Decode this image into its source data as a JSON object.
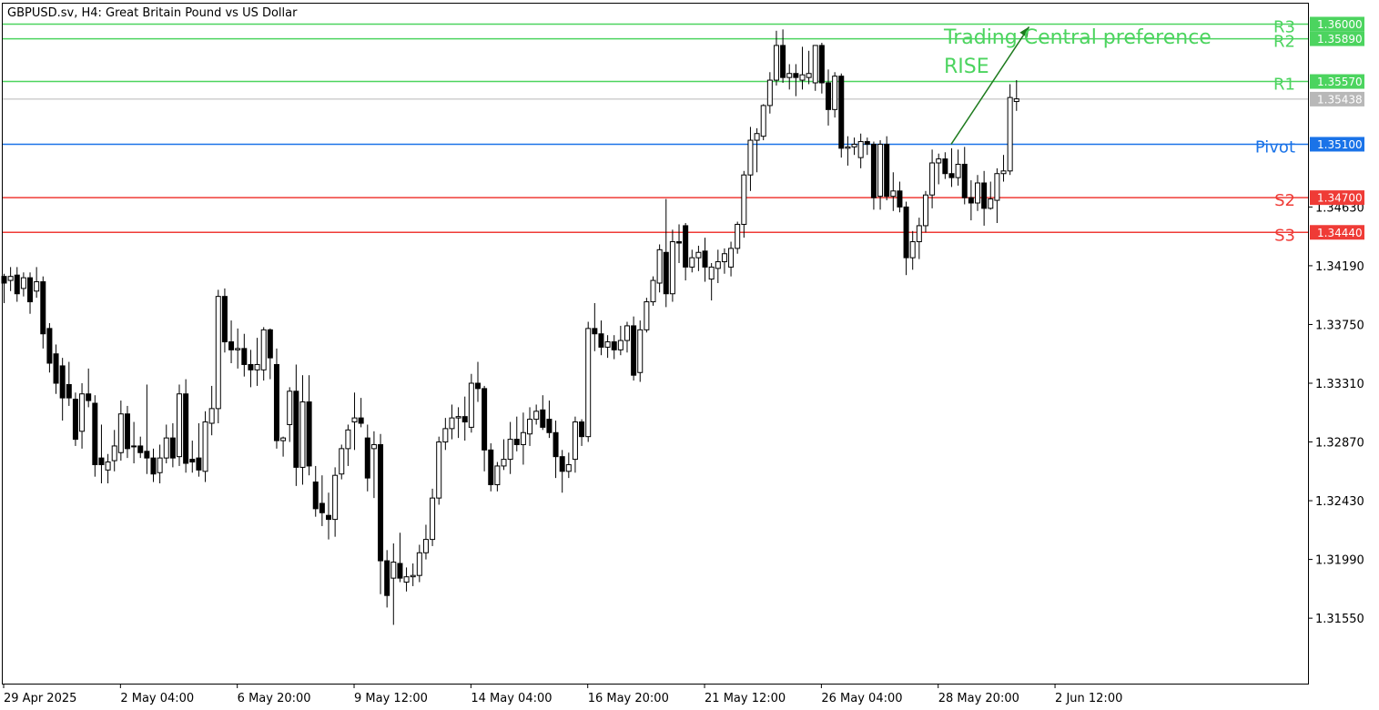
{
  "header": {
    "symbol": "GBPUSD.sv, H4:  Great Britain Pound vs US Dollar"
  },
  "colors": {
    "resistance": "#4cd45f",
    "pivot": "#1a73e8",
    "support": "#ef3b36",
    "current": "#b8b8b8",
    "arrow": "#1d7a1d",
    "candle": "#000000",
    "grid": "#000000"
  },
  "annotation": {
    "line1": "Trading Central preference",
    "line2": "RISE"
  },
  "chart_data": {
    "type": "candlestick",
    "ylim": [
      1.3106,
      1.3616
    ],
    "y_ticks": [
      "1.34630",
      "1.34190",
      "1.33750",
      "1.33310",
      "1.32870",
      "1.32430",
      "1.31990",
      "1.31550"
    ],
    "x_ticks": [
      "29 Apr 2025",
      "2 May 04:00",
      "6 May 20:00",
      "9 May 12:00",
      "14 May 04:00",
      "16 May 20:00",
      "21 May 12:00",
      "26 May 04:00",
      "28 May 20:00",
      "2 Jun 12:00"
    ],
    "levels": [
      {
        "label": "R3",
        "value": 1.36,
        "price": "1.36000",
        "kind": "resistance"
      },
      {
        "label": "R2",
        "value": 1.3589,
        "price": "1.35890",
        "kind": "resistance"
      },
      {
        "label": "R1",
        "value": 1.3557,
        "price": "1.35570",
        "kind": "resistance"
      },
      {
        "label": "",
        "value": 1.35438,
        "price": "1.35438",
        "kind": "current"
      },
      {
        "label": "Pivot",
        "value": 1.351,
        "price": "1.35100",
        "kind": "pivot"
      },
      {
        "label": "S2",
        "value": 1.347,
        "price": "1.34700",
        "kind": "support"
      },
      {
        "label": "S3",
        "value": 1.3444,
        "price": "1.34440",
        "kind": "support"
      }
    ],
    "forecast_arrow": {
      "from_bar": 146,
      "from": 1.351,
      "to_bar": 158,
      "to": 1.3598
    },
    "candles": [
      [
        1.3411,
        1.3413,
        1.3391,
        1.3406
      ],
      [
        1.3408,
        1.3418,
        1.34,
        1.3411
      ],
      [
        1.3412,
        1.3418,
        1.3392,
        1.3398
      ],
      [
        1.3402,
        1.3414,
        1.3396,
        1.341
      ],
      [
        1.341,
        1.3414,
        1.3383,
        1.3392
      ],
      [
        1.34,
        1.3418,
        1.3395,
        1.3407
      ],
      [
        1.3407,
        1.3411,
        1.3357,
        1.3368
      ],
      [
        1.3372,
        1.3376,
        1.3339,
        1.3346
      ],
      [
        1.3353,
        1.336,
        1.3323,
        1.3331
      ],
      [
        1.3344,
        1.335,
        1.3303,
        1.332
      ],
      [
        1.333,
        1.3347,
        1.3314,
        1.332
      ],
      [
        1.3319,
        1.3324,
        1.3284,
        1.3289
      ],
      [
        1.3295,
        1.3331,
        1.3282,
        1.3323
      ],
      [
        1.3323,
        1.3342,
        1.3313,
        1.3318
      ],
      [
        1.3316,
        1.3322,
        1.3261,
        1.327
      ],
      [
        1.3275,
        1.33,
        1.3256,
        1.327
      ],
      [
        1.3266,
        1.3278,
        1.3256,
        1.3272
      ],
      [
        1.3273,
        1.3296,
        1.3265,
        1.3284
      ],
      [
        1.3279,
        1.3318,
        1.3273,
        1.3308
      ],
      [
        1.3308,
        1.3314,
        1.3275,
        1.3282
      ],
      [
        1.3284,
        1.3302,
        1.3271,
        1.3284
      ],
      [
        1.3284,
        1.3291,
        1.3275,
        1.3279
      ],
      [
        1.328,
        1.333,
        1.3263,
        1.3275
      ],
      [
        1.3275,
        1.3282,
        1.3257,
        1.3263
      ],
      [
        1.3264,
        1.3285,
        1.3256,
        1.3275
      ],
      [
        1.3275,
        1.33,
        1.3271,
        1.329
      ],
      [
        1.329,
        1.3301,
        1.3268,
        1.3275
      ],
      [
        1.3276,
        1.333,
        1.3269,
        1.3323
      ],
      [
        1.3323,
        1.3334,
        1.3264,
        1.3271
      ],
      [
        1.3274,
        1.3288,
        1.3264,
        1.3272
      ],
      [
        1.3275,
        1.3301,
        1.3261,
        1.3266
      ],
      [
        1.3265,
        1.331,
        1.3257,
        1.3302
      ],
      [
        1.3301,
        1.3329,
        1.3292,
        1.3312
      ],
      [
        1.3312,
        1.3401,
        1.3301,
        1.3396
      ],
      [
        1.3396,
        1.3402,
        1.3354,
        1.3362
      ],
      [
        1.3362,
        1.3378,
        1.3346,
        1.3356
      ],
      [
        1.3356,
        1.3372,
        1.3342,
        1.3357
      ],
      [
        1.3357,
        1.3368,
        1.3336,
        1.3345
      ],
      [
        1.3345,
        1.3356,
        1.3328,
        1.3341
      ],
      [
        1.3341,
        1.3365,
        1.3329,
        1.3345
      ],
      [
        1.3341,
        1.3373,
        1.3333,
        1.3371
      ],
      [
        1.3371,
        1.3372,
        1.3334,
        1.335
      ],
      [
        1.3345,
        1.3357,
        1.3282,
        1.3288
      ],
      [
        1.3288,
        1.3291,
        1.3276,
        1.329
      ],
      [
        1.33,
        1.3328,
        1.3287,
        1.3325
      ],
      [
        1.3325,
        1.3345,
        1.3254,
        1.3268
      ],
      [
        1.3268,
        1.3337,
        1.3255,
        1.3317
      ],
      [
        1.3317,
        1.3337,
        1.3262,
        1.3269
      ],
      [
        1.3257,
        1.3269,
        1.3231,
        1.3237
      ],
      [
        1.3241,
        1.3262,
        1.3224,
        1.3234
      ],
      [
        1.3232,
        1.3249,
        1.3214,
        1.3229
      ],
      [
        1.3229,
        1.3268,
        1.3216,
        1.3262
      ],
      [
        1.3263,
        1.3285,
        1.3259,
        1.3282
      ],
      [
        1.3282,
        1.33,
        1.3269,
        1.3296
      ],
      [
        1.3302,
        1.3324,
        1.3281,
        1.3305
      ],
      [
        1.3305,
        1.332,
        1.3298,
        1.3301
      ],
      [
        1.329,
        1.33,
        1.325,
        1.326
      ],
      [
        1.3282,
        1.3295,
        1.3245,
        1.3285
      ],
      [
        1.3285,
        1.3293,
        1.3173,
        1.3198
      ],
      [
        1.3198,
        1.3206,
        1.3163,
        1.3172
      ],
      [
        1.3185,
        1.3211,
        1.315,
        1.3197
      ],
      [
        1.3196,
        1.3219,
        1.3182,
        1.3185
      ],
      [
        1.3182,
        1.3193,
        1.3175,
        1.3186
      ],
      [
        1.3186,
        1.3196,
        1.3179,
        1.3187
      ],
      [
        1.3187,
        1.321,
        1.3182,
        1.3204
      ],
      [
        1.3204,
        1.3225,
        1.3199,
        1.3214
      ],
      [
        1.3214,
        1.3252,
        1.3209,
        1.3245
      ],
      [
        1.3245,
        1.3291,
        1.324,
        1.3287
      ],
      [
        1.3287,
        1.3305,
        1.3281,
        1.3297
      ],
      [
        1.3297,
        1.3315,
        1.3289,
        1.3305
      ],
      [
        1.3305,
        1.3313,
        1.329,
        1.3306
      ],
      [
        1.3306,
        1.3321,
        1.3288,
        1.3302
      ],
      [
        1.3298,
        1.3338,
        1.3294,
        1.3331
      ],
      [
        1.3331,
        1.3347,
        1.3317,
        1.3327
      ],
      [
        1.3327,
        1.3329,
        1.3265,
        1.3281
      ],
      [
        1.3281,
        1.3286,
        1.325,
        1.3255
      ],
      [
        1.3255,
        1.3272,
        1.325,
        1.3269
      ],
      [
        1.3269,
        1.3289,
        1.3266,
        1.3274
      ],
      [
        1.3274,
        1.3302,
        1.3263,
        1.3289
      ],
      [
        1.3289,
        1.3306,
        1.328,
        1.3285
      ],
      [
        1.3285,
        1.3309,
        1.327,
        1.3294
      ],
      [
        1.3293,
        1.3313,
        1.3284,
        1.3304
      ],
      [
        1.3304,
        1.3315,
        1.33,
        1.331
      ],
      [
        1.3311,
        1.3322,
        1.3296,
        1.3298
      ],
      [
        1.3304,
        1.3318,
        1.329,
        1.3294
      ],
      [
        1.3294,
        1.3303,
        1.326,
        1.3276
      ],
      [
        1.3276,
        1.3281,
        1.3249,
        1.3265
      ],
      [
        1.3265,
        1.3279,
        1.326,
        1.327
      ],
      [
        1.3274,
        1.3306,
        1.3264,
        1.3302
      ],
      [
        1.3302,
        1.3304,
        1.3284,
        1.3291
      ],
      [
        1.3291,
        1.3377,
        1.3287,
        1.3372
      ],
      [
        1.3372,
        1.3391,
        1.3355,
        1.3368
      ],
      [
        1.3368,
        1.3378,
        1.3352,
        1.3358
      ],
      [
        1.3358,
        1.3367,
        1.335,
        1.3362
      ],
      [
        1.3362,
        1.3367,
        1.3349,
        1.3356
      ],
      [
        1.3356,
        1.3374,
        1.3352,
        1.3363
      ],
      [
        1.3363,
        1.3377,
        1.3354,
        1.3374
      ],
      [
        1.3374,
        1.3381,
        1.3333,
        1.3337
      ],
      [
        1.3339,
        1.3378,
        1.3332,
        1.3371
      ],
      [
        1.3371,
        1.3395,
        1.3369,
        1.3392
      ],
      [
        1.3392,
        1.3411,
        1.3389,
        1.3408
      ],
      [
        1.3406,
        1.3435,
        1.3399,
        1.3431
      ],
      [
        1.3429,
        1.3469,
        1.3388,
        1.3398
      ],
      [
        1.3398,
        1.3446,
        1.3392,
        1.3437
      ],
      [
        1.3437,
        1.345,
        1.3421,
        1.3436
      ],
      [
        1.3449,
        1.3451,
        1.3408,
        1.3418
      ],
      [
        1.3418,
        1.3431,
        1.3414,
        1.3425
      ],
      [
        1.3425,
        1.3434,
        1.3415,
        1.3429
      ],
      [
        1.343,
        1.344,
        1.3407,
        1.3418
      ],
      [
        1.3409,
        1.3421,
        1.3393,
        1.3418
      ],
      [
        1.3417,
        1.3431,
        1.3406,
        1.3422
      ],
      [
        1.3422,
        1.3432,
        1.3413,
        1.3428
      ],
      [
        1.3418,
        1.3437,
        1.3411,
        1.3432
      ],
      [
        1.3432,
        1.3452,
        1.3428,
        1.345
      ],
      [
        1.345,
        1.349,
        1.344,
        1.3487
      ],
      [
        1.3487,
        1.3523,
        1.3475,
        1.3513
      ],
      [
        1.3513,
        1.3522,
        1.3489,
        1.3518
      ],
      [
        1.3516,
        1.354,
        1.3513,
        1.3539
      ],
      [
        1.3539,
        1.3564,
        1.3533,
        1.3558
      ],
      [
        1.3558,
        1.3595,
        1.3554,
        1.3584
      ],
      [
        1.3584,
        1.3596,
        1.3556,
        1.356
      ],
      [
        1.356,
        1.357,
        1.3551,
        1.3563
      ],
      [
        1.3563,
        1.357,
        1.3546,
        1.356
      ],
      [
        1.3558,
        1.3583,
        1.3551,
        1.3562
      ],
      [
        1.356,
        1.358,
        1.3555,
        1.3563
      ],
      [
        1.3556,
        1.3584,
        1.355,
        1.3584
      ],
      [
        1.3584,
        1.3586,
        1.3548,
        1.3556
      ],
      [
        1.3556,
        1.3566,
        1.3524,
        1.3536
      ],
      [
        1.3536,
        1.3564,
        1.353,
        1.3561
      ],
      [
        1.3561,
        1.3563,
        1.35,
        1.3507
      ],
      [
        1.3507,
        1.3516,
        1.3494,
        1.3508
      ],
      [
        1.3508,
        1.3515,
        1.3502,
        1.351
      ],
      [
        1.35,
        1.3518,
        1.3492,
        1.3512
      ],
      [
        1.3512,
        1.3515,
        1.3502,
        1.351
      ],
      [
        1.351,
        1.3512,
        1.3461,
        1.347
      ],
      [
        1.3471,
        1.3513,
        1.3461,
        1.351
      ],
      [
        1.351,
        1.3516,
        1.3468,
        1.3471
      ],
      [
        1.3471,
        1.3489,
        1.346,
        1.3475
      ],
      [
        1.3475,
        1.3482,
        1.3459,
        1.3463
      ],
      [
        1.3463,
        1.3467,
        1.3412,
        1.3425
      ],
      [
        1.3425,
        1.3445,
        1.3416,
        1.3437
      ],
      [
        1.3437,
        1.3455,
        1.3424,
        1.3449
      ],
      [
        1.3449,
        1.3475,
        1.3444,
        1.3472
      ],
      [
        1.3472,
        1.3506,
        1.3462,
        1.3496
      ],
      [
        1.3496,
        1.3503,
        1.348,
        1.3499
      ],
      [
        1.3499,
        1.3504,
        1.3484,
        1.3488
      ],
      [
        1.3488,
        1.3507,
        1.3478,
        1.3485
      ],
      [
        1.3485,
        1.3506,
        1.3479,
        1.3495
      ],
      [
        1.3495,
        1.3508,
        1.3465,
        1.347
      ],
      [
        1.347,
        1.3483,
        1.3453,
        1.3466
      ],
      [
        1.3466,
        1.3487,
        1.346,
        1.3481
      ],
      [
        1.3481,
        1.349,
        1.3449,
        1.3462
      ],
      [
        1.3462,
        1.3482,
        1.3461,
        1.3469
      ],
      [
        1.3468,
        1.3492,
        1.3451,
        1.3488
      ],
      [
        1.3488,
        1.3502,
        1.3482,
        1.349
      ],
      [
        1.349,
        1.3555,
        1.3487,
        1.3545
      ],
      [
        1.3542,
        1.3558,
        1.3535,
        1.3544
      ]
    ]
  }
}
